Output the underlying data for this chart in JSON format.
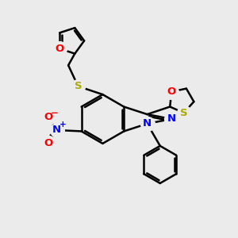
{
  "bg_color": "#ebebeb",
  "bond_color": "#000000",
  "bond_width": 1.8,
  "atom_colors": {
    "N": "#0000ff",
    "O": "#ff0000",
    "S": "#aaaa00",
    "C": "#000000"
  },
  "font_size": 9.5,
  "fig_size": [
    3.0,
    3.0
  ],
  "dpi": 100,
  "xlim": [
    0,
    10
  ],
  "ylim": [
    0,
    10
  ]
}
